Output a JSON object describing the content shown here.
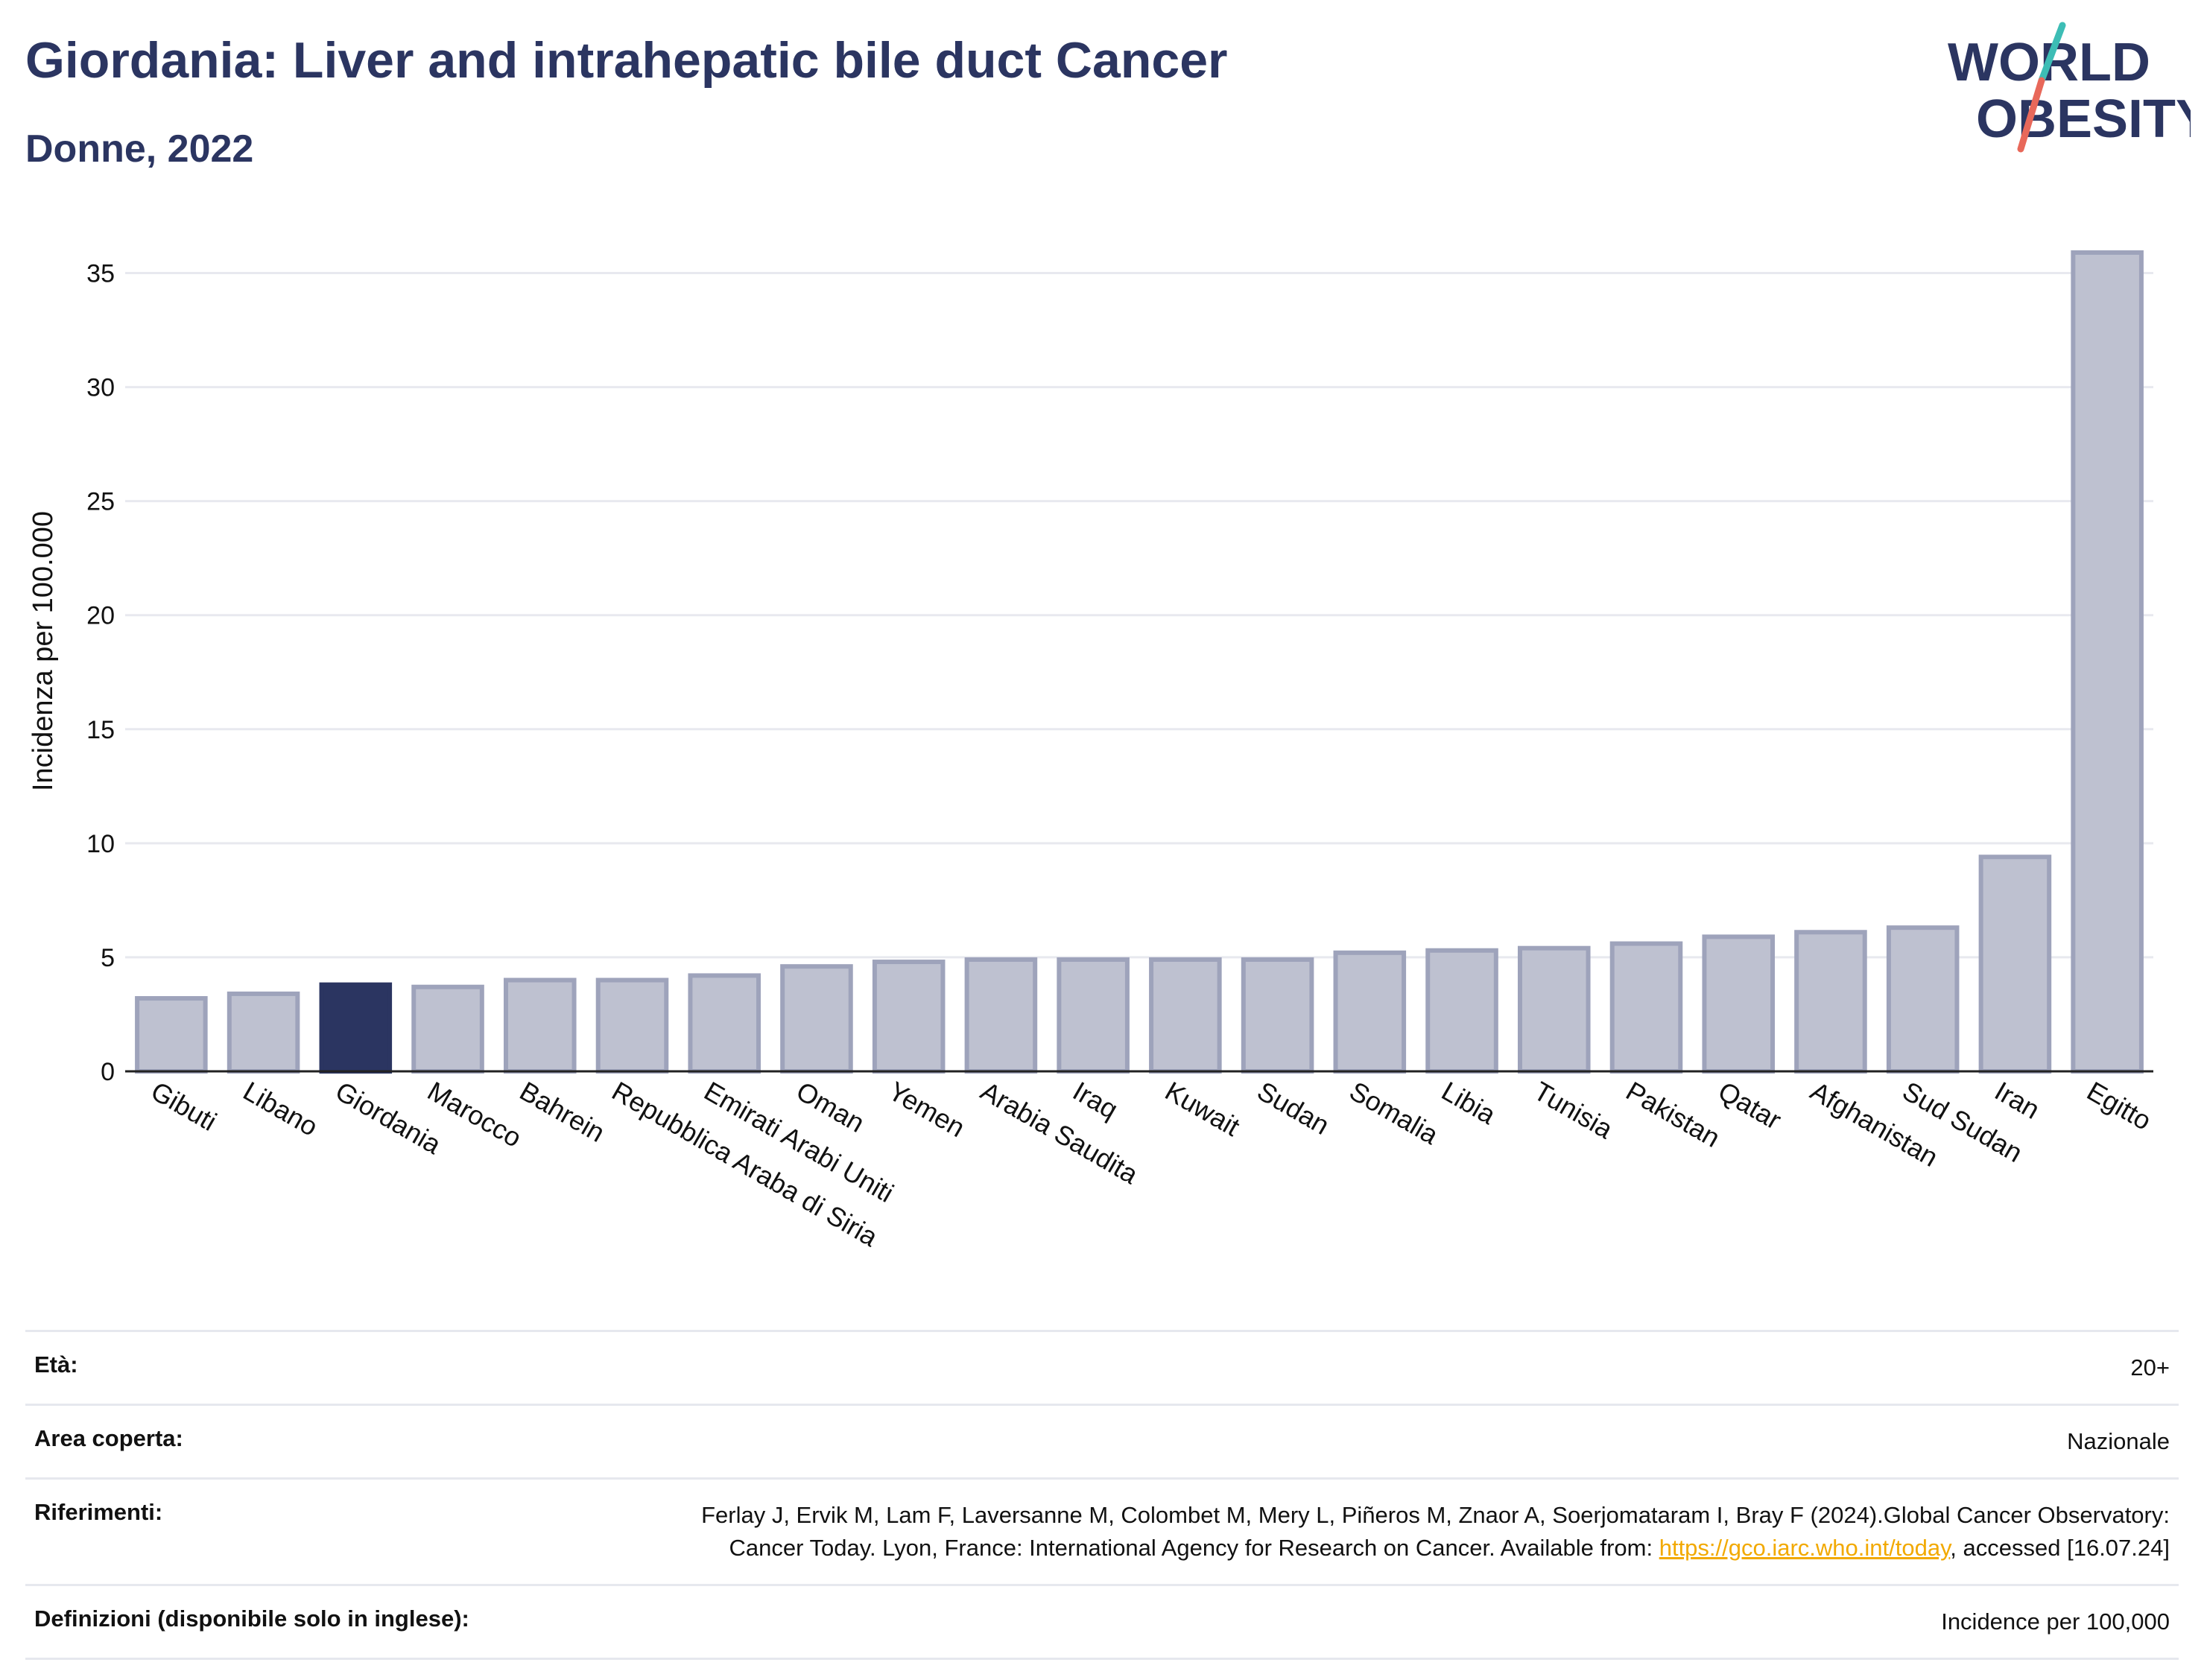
{
  "header": {
    "title": "Giordania: Liver and intrahepatic bile duct Cancer",
    "subtitle": "Donne, 2022"
  },
  "logo": {
    "line1": "WORLD",
    "line2": "OBESITY",
    "colors": {
      "text": "#2b3561",
      "slash_top": "#3dbdb5",
      "slash_bottom": "#e8685a"
    }
  },
  "colors": {
    "highlight_bar": "#2b3561",
    "bar_fill": "#bec1d0",
    "bar_stroke": "#9ea3bb",
    "grid": "#e8e9ef",
    "axis": "#222222"
  },
  "chart_data": {
    "type": "bar",
    "ylabel": "Incidenza per 100.000",
    "ylim": [
      0,
      37.5
    ],
    "yticks": [
      0,
      5,
      10,
      15,
      20,
      25,
      30,
      35
    ],
    "grid": true,
    "highlight": "Giordania",
    "categories": [
      "Gibuti",
      "Libano",
      "Giordania",
      "Marocco",
      "Bahrein",
      "Repubblica Araba di Siria",
      "Emirati Arabi Uniti",
      "Oman",
      "Yemen",
      "Arabia Saudita",
      "Iraq",
      "Kuwait",
      "Sudan",
      "Somalia",
      "Libia",
      "Tunisia",
      "Pakistan",
      "Qatar",
      "Afghanistan",
      "Sud Sudan",
      "Iran",
      "Egitto"
    ],
    "values": [
      3.2,
      3.4,
      3.8,
      3.7,
      4.0,
      4.0,
      4.2,
      4.6,
      4.8,
      4.9,
      4.9,
      4.9,
      4.9,
      5.2,
      5.3,
      5.4,
      5.6,
      5.9,
      6.1,
      6.3,
      9.4,
      35.9
    ]
  },
  "info": {
    "age_label": "Età:",
    "age_value": "20+",
    "area_label": "Area coperta:",
    "area_value": "Nazionale",
    "refs_label": "Riferimenti:",
    "refs_text_1": "Ferlay J, Ervik M, Lam F, Laversanne M, Colombet M, Mery L, Piñeros M, Znaor A, Soerjomataram I, Bray F (2024).Global Cancer Observatory: Cancer Today. Lyon, France: International Agency for Research on Cancer. Available from: ",
    "refs_link": "https://gco.iarc.who.int/today",
    "refs_text_2": ", accessed [16.07.24]",
    "defs_label": "Definizioni (disponibile solo in inglese):",
    "defs_value": "Incidence per 100,000"
  }
}
